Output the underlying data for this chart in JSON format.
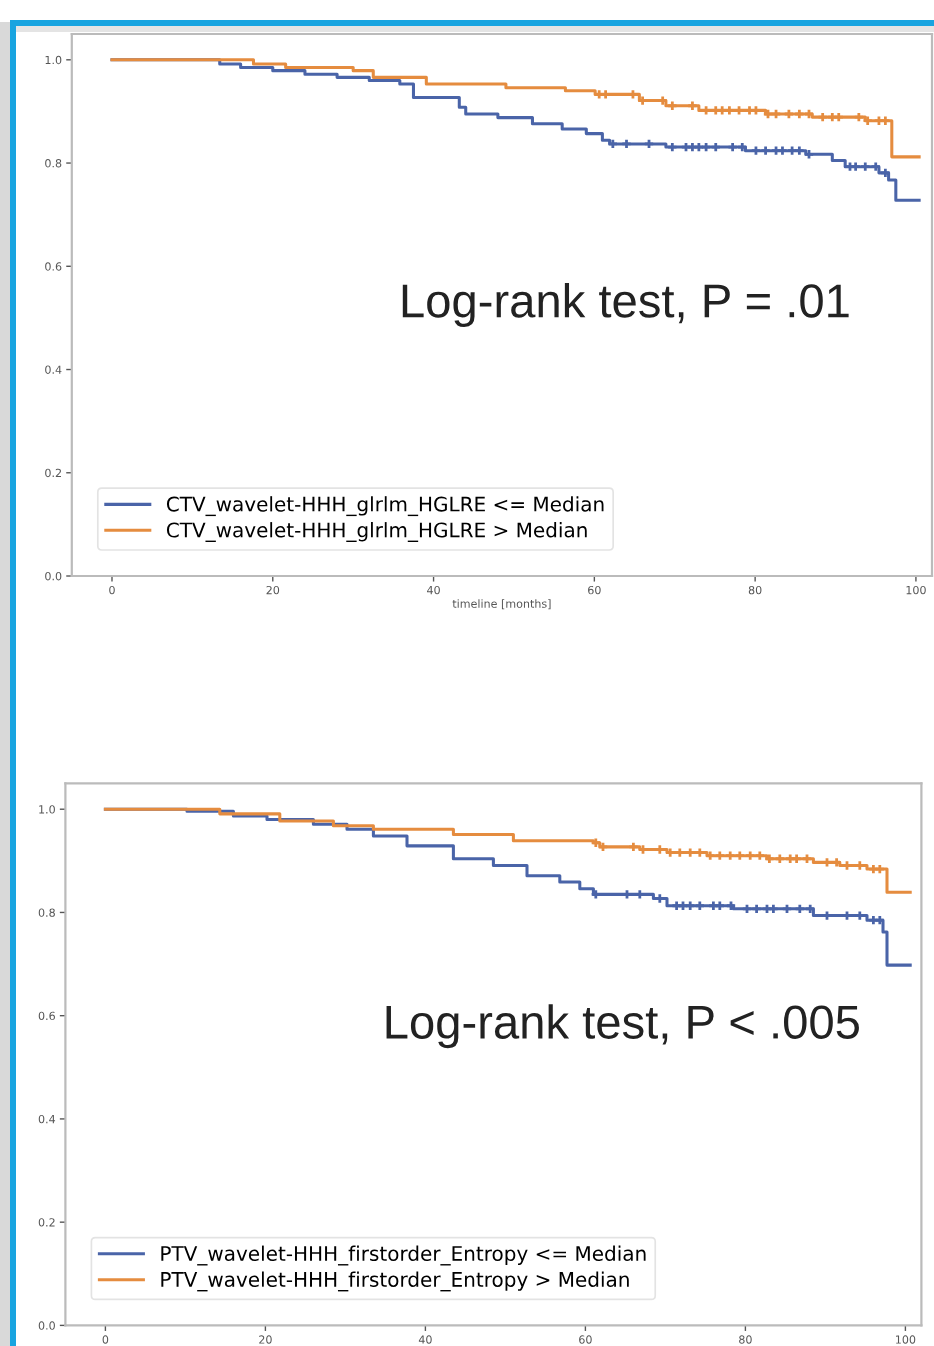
{
  "chart_data": [
    {
      "type": "step",
      "xlabel": "timeline [months]",
      "xlim": [
        -5,
        102
      ],
      "ylim": [
        0,
        1.05
      ],
      "xticks": [
        0,
        20,
        40,
        60,
        80,
        100
      ],
      "yticks": [
        {
          "value": 0,
          "label": "0.0"
        },
        {
          "value": 0.2,
          "label": "0.2"
        },
        {
          "value": 0.4,
          "label": "0.4"
        },
        {
          "value": 0.6,
          "label": "0.6"
        },
        {
          "value": 0.8,
          "label": "0.8"
        },
        {
          "value": 1,
          "label": "1.0"
        }
      ],
      "grid": false,
      "legend": "bottom left",
      "annotations": [
        "Log-rank test, P = .01"
      ],
      "series": [
        {
          "name": "CTV_wavelet-HHH_glrlm_HGLRE <= Median",
          "color": "#4a64a8",
          "x": [
            0,
            13.4,
            16,
            20,
            24,
            28,
            32,
            35.8,
            37.5,
            43.2,
            44,
            48,
            52.3,
            56,
            59,
            61,
            61.9,
            68.9,
            78.8,
            86.3,
            89.6,
            91.2,
            95.4,
            96.6,
            97.5,
            100.4
          ],
          "values": [
            1.0,
            0.992,
            0.985,
            0.979,
            0.972,
            0.966,
            0.96,
            0.953,
            0.927,
            0.908,
            0.895,
            0.888,
            0.876,
            0.866,
            0.857,
            0.844,
            0.837,
            0.831,
            0.824,
            0.817,
            0.805,
            0.793,
            0.781,
            0.767,
            0.728,
            0.728
          ]
        },
        {
          "name": "CTV_wavelet-HHH_glrlm_HGLRE > Median",
          "color": "#e58c3f",
          "x": [
            0,
            17.6,
            21.6,
            30,
            32.5,
            39.1,
            49,
            56.4,
            60.1,
            65.6,
            68.9,
            73,
            81.3,
            87.1,
            93.7,
            97,
            100.4
          ],
          "values": [
            1.0,
            0.992,
            0.985,
            0.979,
            0.966,
            0.953,
            0.946,
            0.94,
            0.933,
            0.921,
            0.911,
            0.902,
            0.895,
            0.889,
            0.882,
            0.812,
            0.812
          ]
        },
        {
          "type": "scatter",
          "marker": "cross",
          "color": "#4a64a8",
          "x": [
            62.3,
            64,
            66.8,
            69.7,
            71.4,
            72.2,
            73,
            73.9,
            75.1,
            77.2,
            78.4,
            80.1,
            81.3,
            82.6,
            83.4,
            84.6,
            85.5,
            86.7,
            91.8,
            92.5,
            93.7,
            95,
            96.2
          ],
          "values": [
            0.837,
            0.837,
            0.837,
            0.831,
            0.831,
            0.831,
            0.831,
            0.831,
            0.831,
            0.831,
            0.831,
            0.824,
            0.824,
            0.824,
            0.824,
            0.824,
            0.824,
            0.817,
            0.793,
            0.793,
            0.793,
            0.793,
            0.781
          ]
        },
        {
          "type": "scatter",
          "marker": "cross",
          "color": "#e58c3f",
          "x": [
            60.6,
            61.4,
            64.8,
            66,
            68.5,
            69.7,
            72.2,
            73.9,
            75.1,
            75.9,
            76.8,
            78,
            79.3,
            80.1,
            81.6,
            82.6,
            84.2,
            85.5,
            86.7,
            88.4,
            89.6,
            90.4,
            92.9,
            94,
            95.4,
            96.2
          ],
          "values": [
            0.933,
            0.933,
            0.933,
            0.921,
            0.921,
            0.911,
            0.911,
            0.902,
            0.902,
            0.902,
            0.902,
            0.902,
            0.902,
            0.902,
            0.895,
            0.895,
            0.895,
            0.895,
            0.895,
            0.889,
            0.889,
            0.889,
            0.889,
            0.882,
            0.882,
            0.882
          ]
        }
      ]
    },
    {
      "type": "step",
      "xlim": [
        -5,
        102
      ],
      "ylim": [
        0,
        1.05
      ],
      "xticks": [
        0,
        20,
        40,
        60,
        80,
        100
      ],
      "yticks": [
        {
          "value": 0,
          "label": "0.0"
        },
        {
          "value": 0.2,
          "label": "0.2"
        },
        {
          "value": 0.4,
          "label": "0.4"
        },
        {
          "value": 0.6,
          "label": "0.6"
        },
        {
          "value": 0.8,
          "label": "0.8"
        },
        {
          "value": 1,
          "label": "1.0"
        }
      ],
      "grid": false,
      "legend": "bottom left",
      "annotations": [
        "Log-rank test, P < .005"
      ],
      "series": [
        {
          "name": "PTV_wavelet-HHH_firstorder_Entropy <= Median",
          "color": "#4a64a8",
          "x": [
            0,
            10.2,
            16,
            20.2,
            26,
            30.2,
            33.5,
            37.7,
            43.5,
            48.5,
            52.7,
            56.8,
            59.3,
            61,
            68.5,
            70.2,
            78.5,
            88.5,
            95.2,
            97.2,
            97.7,
            100.6
          ],
          "values": [
            1.0,
            0.996,
            0.987,
            0.98,
            0.971,
            0.961,
            0.948,
            0.929,
            0.904,
            0.891,
            0.871,
            0.859,
            0.846,
            0.835,
            0.827,
            0.813,
            0.807,
            0.794,
            0.785,
            0.762,
            0.698,
            0.698
          ]
        },
        {
          "name": "PTV_wavelet-HHH_firstorder_Entropy > Median",
          "color": "#e58c3f",
          "x": [
            0,
            14.3,
            21.8,
            28.5,
            33.5,
            43.5,
            51,
            61,
            61.8,
            66.8,
            70.2,
            75.2,
            82.7,
            88.5,
            91.8,
            95.2,
            97.7,
            100.6
          ],
          "values": [
            1.0,
            0.991,
            0.977,
            0.968,
            0.961,
            0.951,
            0.939,
            0.935,
            0.927,
            0.922,
            0.916,
            0.91,
            0.904,
            0.897,
            0.891,
            0.884,
            0.839,
            0.839
          ]
        },
        {
          "type": "scatter",
          "marker": "cross",
          "color": "#4a64a8",
          "x": [
            61.3,
            65.2,
            66.8,
            69.3,
            71.4,
            72.2,
            73.1,
            74.3,
            76,
            76.8,
            78.2,
            80.2,
            81.4,
            82.7,
            83.5,
            85.2,
            86.8,
            88.1,
            90.2,
            92.7,
            94.3,
            96,
            96.8
          ],
          "values": [
            0.835,
            0.835,
            0.835,
            0.827,
            0.813,
            0.813,
            0.813,
            0.813,
            0.813,
            0.813,
            0.813,
            0.807,
            0.807,
            0.807,
            0.807,
            0.807,
            0.807,
            0.807,
            0.794,
            0.794,
            0.794,
            0.785,
            0.785
          ]
        },
        {
          "type": "scatter",
          "marker": "cross",
          "color": "#e58c3f",
          "x": [
            61.3,
            62.2,
            66,
            67.2,
            69.3,
            70.6,
            71.8,
            73.1,
            74.3,
            75.6,
            76.8,
            78.1,
            79.3,
            80.6,
            81.8,
            83,
            84.3,
            85.6,
            86.4,
            87.7,
            90.2,
            91.4,
            92.7,
            94.3,
            96,
            96.8
          ],
          "values": [
            0.935,
            0.927,
            0.927,
            0.922,
            0.922,
            0.916,
            0.916,
            0.916,
            0.916,
            0.91,
            0.91,
            0.91,
            0.91,
            0.91,
            0.91,
            0.904,
            0.904,
            0.904,
            0.904,
            0.904,
            0.897,
            0.897,
            0.891,
            0.891,
            0.884,
            0.884
          ]
        }
      ]
    }
  ]
}
